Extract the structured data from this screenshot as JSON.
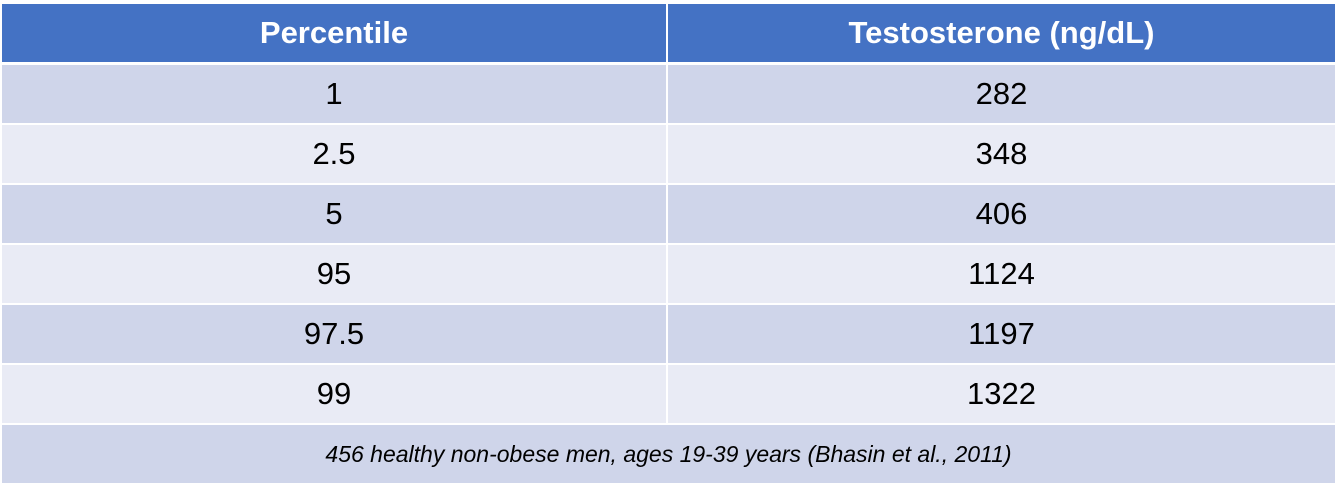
{
  "table": {
    "headers": [
      "Percentile",
      "Testosterone (ng/dL)"
    ],
    "rows": [
      [
        "1",
        "282"
      ],
      [
        "2.5",
        "348"
      ],
      [
        "5",
        "406"
      ],
      [
        "95",
        "1124"
      ],
      [
        "97.5",
        "1197"
      ],
      [
        "99",
        "1322"
      ]
    ],
    "footnote": "456 healthy non-obese men, ages 19-39 years (Bhasin et al., 2011)"
  },
  "colors": {
    "header_bg": "#4472c4",
    "row_odd_bg": "#cfd5ea",
    "row_even_bg": "#e9ebf5"
  }
}
